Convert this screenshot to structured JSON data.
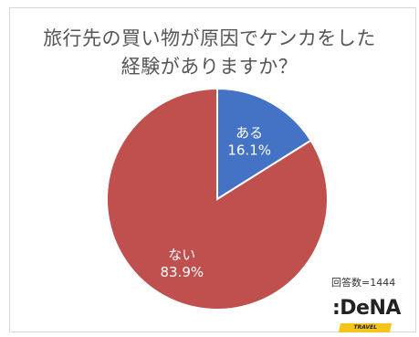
{
  "title_line1": "旅行先の買い物が原因でケンカをした",
  "title_line2": "経験がありますか？",
  "respondents_text": "回答数=1444",
  "logo": {
    "main": ":DeNA",
    "sub": "TRAVEL"
  },
  "colors": {
    "yes": "#4472c4",
    "no": "#c0504d",
    "stroke": "#ffffff",
    "label": "#ffffff"
  },
  "chart_data": {
    "type": "pie",
    "title": "旅行先の買い物が原因でケンカをした 経験がありますか？",
    "slices": [
      {
        "label": "ある",
        "value": 16.1,
        "display": "16.1%"
      },
      {
        "label": "ない",
        "value": 83.9,
        "display": "83.9%"
      }
    ]
  }
}
